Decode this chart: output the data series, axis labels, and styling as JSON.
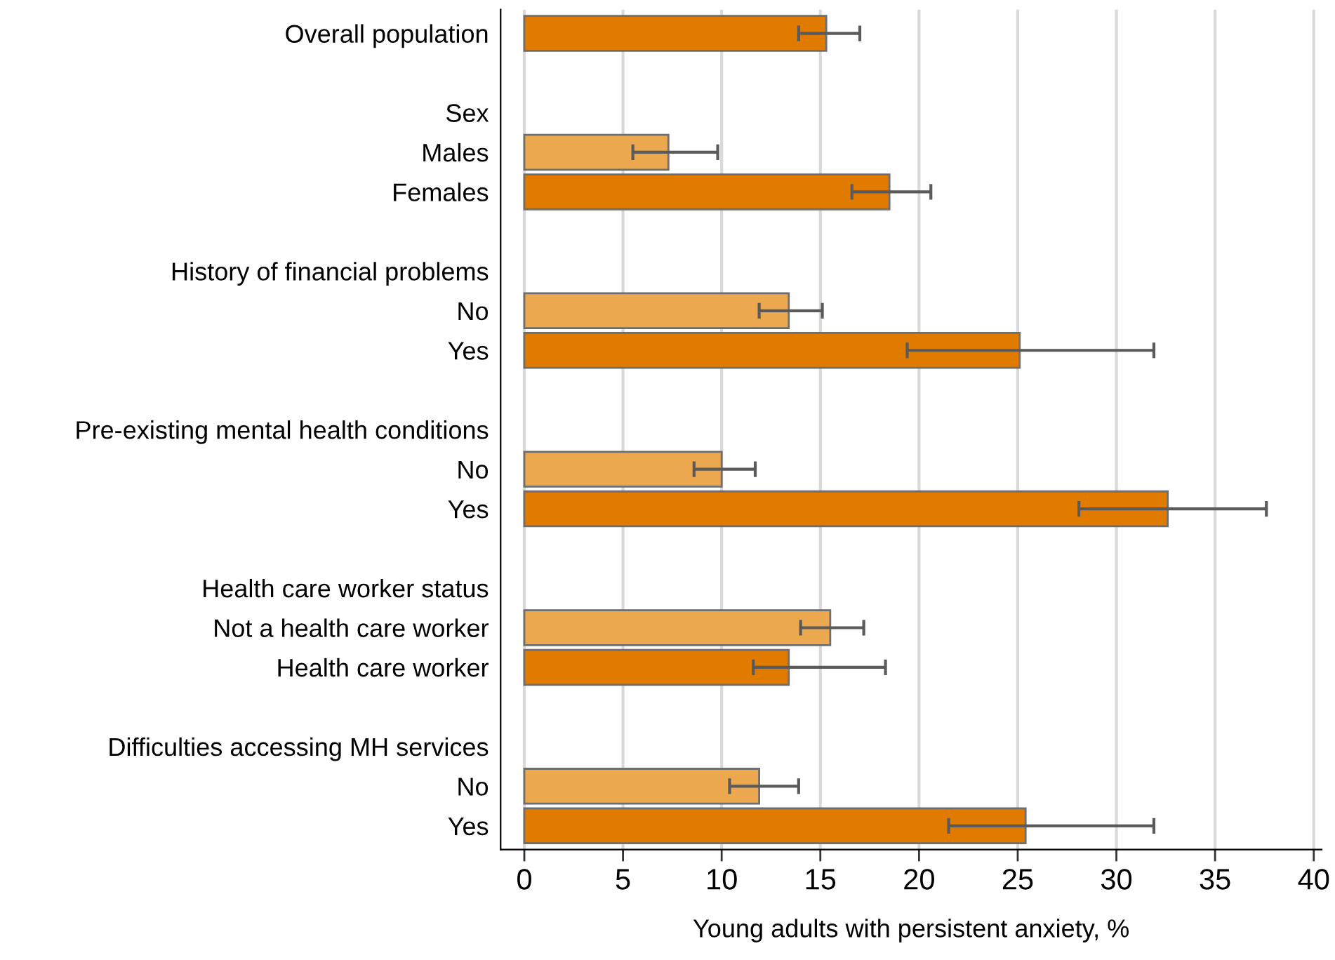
{
  "chart_data": {
    "type": "bar",
    "orientation": "horizontal",
    "xlabel": "Young adults with persistent anxiety, %",
    "categories": [
      "Overall population",
      null,
      "Sex",
      "Males",
      "Females",
      null,
      "History of financial problems",
      "No",
      "Yes",
      null,
      "Pre-existing mental health conditions",
      "No",
      "Yes",
      null,
      "Health care worker status",
      "Not a health care worker",
      "Health care worker",
      null,
      "Difficulties accessing MH services",
      "No",
      "Yes"
    ],
    "values": [
      15.3,
      null,
      null,
      7.3,
      18.5,
      null,
      null,
      13.4,
      25.1,
      null,
      null,
      10.0,
      32.6,
      null,
      null,
      15.5,
      13.4,
      null,
      null,
      11.9,
      25.4
    ],
    "errors": [
      [
        13.9,
        17.0
      ],
      null,
      null,
      [
        5.5,
        9.8
      ],
      [
        16.6,
        20.6
      ],
      null,
      null,
      [
        11.9,
        15.1
      ],
      [
        19.4,
        31.9
      ],
      null,
      null,
      [
        8.6,
        11.7
      ],
      [
        28.1,
        37.6
      ],
      null,
      null,
      [
        14.0,
        17.2
      ],
      [
        11.6,
        18.3
      ],
      null,
      null,
      [
        10.4,
        13.9
      ],
      [
        21.5,
        31.9
      ]
    ],
    "colors": [
      "#e07b00",
      null,
      null,
      "#eba84f",
      "#e07b00",
      null,
      null,
      "#eba84f",
      "#e07b00",
      null,
      null,
      "#eba84f",
      "#e07b00",
      null,
      null,
      "#eba84f",
      "#e07b00",
      null,
      null,
      "#eba84f",
      "#e07b00"
    ],
    "xlim": [
      -1.2,
      40.4
    ],
    "xticks": [
      0,
      5,
      10,
      15,
      20,
      25,
      30,
      35,
      40
    ],
    "grid": "x"
  }
}
